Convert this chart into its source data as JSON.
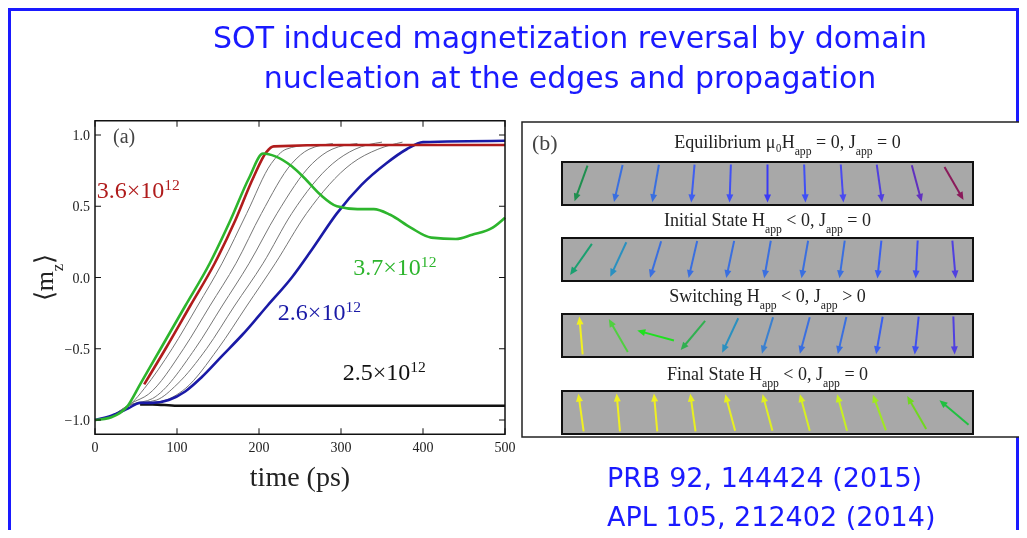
{
  "chart_data": [
    {
      "type": "line",
      "title": "SOT induced magnetization reversal by domain nucleation at the edges and propagation",
      "xlabel": "time (ps)",
      "ylabel": "⟨m$_{z}$⟩",
      "annotations": [
        "(a)"
      ],
      "xlim": [
        0,
        500
      ],
      "ylim": [
        -1.1,
        1.1
      ],
      "xticks": [
        0,
        100,
        200,
        300,
        400,
        500
      ],
      "yticks": [
        {
          "value": -1,
          "label": "−1.0"
        },
        {
          "value": -0.5,
          "label": "−0.5"
        },
        {
          "value": 0,
          "label": "0.0"
        },
        {
          "value": 0.5,
          "label": "0.5"
        },
        {
          "value": 1,
          "label": "1.0"
        }
      ],
      "series": [
        {
          "color": "#777777",
          "x": [
            0,
            20,
            45,
            60,
            94,
            125,
            155,
            185,
            215,
            233,
            260
          ],
          "values": [
            -1,
            -0.97,
            -0.88,
            -0.78,
            -0.5,
            -0.2,
            0.1,
            0.45,
            0.8,
            0.9,
            0.93
          ]
        },
        {
          "color": "#777777",
          "x": [
            0,
            20,
            45,
            65,
            108,
            140,
            172,
            203,
            240,
            261,
            290
          ],
          "values": [
            -1,
            -0.97,
            -0.88,
            -0.82,
            -0.5,
            -0.2,
            0.1,
            0.45,
            0.8,
            0.9,
            0.94
          ]
        },
        {
          "color": "#777777",
          "x": [
            0,
            20,
            45,
            70,
            122,
            155,
            188,
            222,
            265,
            289,
            320
          ],
          "values": [
            -1,
            -0.97,
            -0.89,
            -0.85,
            -0.5,
            -0.2,
            0.1,
            0.45,
            0.8,
            0.9,
            0.94
          ]
        },
        {
          "color": "#777777",
          "x": [
            0,
            20,
            45,
            75,
            100,
            136,
            170,
            205,
            240,
            290,
            317,
            350
          ],
          "values": [
            -1,
            -0.97,
            -0.89,
            -0.86,
            -0.75,
            -0.5,
            -0.2,
            0.1,
            0.45,
            0.8,
            0.9,
            0.95
          ]
        },
        {
          "color": "#777777",
          "x": [
            0,
            20,
            45,
            80,
            110,
            150,
            185,
            220,
            258,
            313,
            345,
            375
          ],
          "values": [
            -1,
            -0.97,
            -0.89,
            -0.87,
            -0.78,
            -0.5,
            -0.2,
            0.1,
            0.45,
            0.8,
            0.9,
            0.95
          ]
        },
        {
          "name": "2.5×10$^{12}$",
          "color": "#111111",
          "x": [
            55,
            70,
            100,
            500
          ],
          "values": [
            -0.89,
            -0.89,
            -0.9,
            -0.9
          ]
        },
        {
          "name": "2.6×10$^{12}$",
          "color": "#1a1aa6",
          "x": [
            0,
            20,
            40,
            55,
            70,
            90,
            110,
            130,
            155,
            180,
            210,
            240,
            265,
            295,
            325,
            355,
            380,
            400,
            500
          ],
          "values": [
            -1,
            -0.97,
            -0.92,
            -0.88,
            -0.88,
            -0.86,
            -0.8,
            -0.7,
            -0.55,
            -0.4,
            -0.2,
            0,
            0.2,
            0.45,
            0.65,
            0.8,
            0.9,
            0.95,
            0.96
          ]
        },
        {
          "name": "3.6×10$^{12}$",
          "color": "#b01c1c",
          "x": [
            60,
            86,
            116,
            146,
            171,
            193,
            209,
            218,
            300,
            500
          ],
          "values": [
            -0.75,
            -0.5,
            -0.2,
            0.1,
            0.4,
            0.7,
            0.88,
            0.92,
            0.93,
            0.93
          ]
        },
        {
          "name": "3.7×10$^{12}$",
          "color": "#2db52d",
          "x": [
            0,
            20,
            40,
            55,
            80,
            110,
            140,
            165,
            188,
            205,
            220,
            240,
            255,
            275,
            295,
            320,
            340,
            360,
            385,
            410,
            440,
            460,
            485,
            500
          ],
          "values": [
            -1,
            -0.98,
            -0.9,
            -0.75,
            -0.5,
            -0.2,
            0.1,
            0.4,
            0.7,
            0.87,
            0.85,
            0.78,
            0.7,
            0.58,
            0.5,
            0.48,
            0.48,
            0.44,
            0.35,
            0.28,
            0.27,
            0.3,
            0.35,
            0.42
          ]
        }
      ]
    },
    {
      "type": "other",
      "title": "(b)",
      "annotations": [
        "Equilibrium μ₀H$_{app}$ = 0,  J$_{app}$ = 0",
        "Initial State H$_{app}$ < 0,  J$_{app}$ = 0",
        "Switching H$_{app}$ < 0,  J$_{app}$ > 0",
        "Final State H$_{app}$ < 0,  J$_{app}$ = 0",
        "PRB 92, 144424 (2015)",
        "APL 105, 212402 (2014)"
      ]
    }
  ]
}
